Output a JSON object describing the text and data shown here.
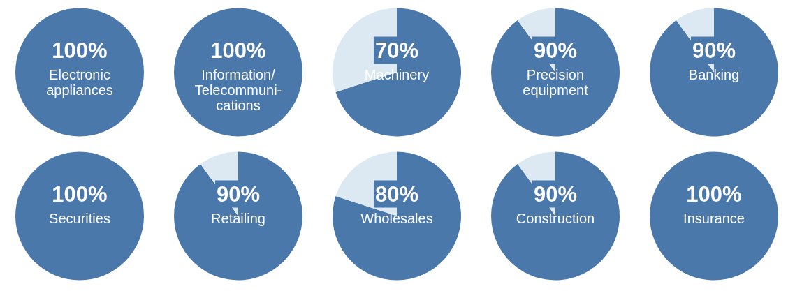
{
  "chart_data": [
    {
      "type": "pie",
      "categories": [
        "Electronic\nappliances"
      ],
      "values": [
        100
      ],
      "colors": [
        "#4a78aa"
      ],
      "value_labels": [
        "100%"
      ]
    },
    {
      "type": "pie",
      "categories": [
        "Information/\nTelecommuni-\ncations"
      ],
      "values": [
        100
      ],
      "colors": [
        "#4a78aa"
      ],
      "value_labels": [
        "100%"
      ]
    },
    {
      "type": "pie",
      "categories": [
        "Machinery",
        null
      ],
      "values": [
        70,
        30
      ],
      "colors": [
        "#4a78aa",
        "#dde9f2"
      ],
      "value_labels": [
        "70%",
        null
      ]
    },
    {
      "type": "pie",
      "categories": [
        "Precision\nequipment",
        null
      ],
      "values": [
        90,
        10
      ],
      "colors": [
        "#4a78aa",
        "#dde9f2"
      ],
      "value_labels": [
        "90%",
        null
      ]
    },
    {
      "type": "pie",
      "categories": [
        "Banking",
        null
      ],
      "values": [
        90,
        10
      ],
      "colors": [
        "#4a78aa",
        "#dde9f2"
      ],
      "value_labels": [
        "90%",
        null
      ]
    },
    {
      "type": "pie",
      "categories": [
        "Securities"
      ],
      "values": [
        100
      ],
      "colors": [
        "#4a78aa"
      ],
      "value_labels": [
        "100%"
      ]
    },
    {
      "type": "pie",
      "categories": [
        "Retailing",
        null
      ],
      "values": [
        90,
        10
      ],
      "colors": [
        "#4a78aa",
        "#dde9f2"
      ],
      "value_labels": [
        "90%",
        null
      ]
    },
    {
      "type": "pie",
      "categories": [
        "Wholesales",
        null
      ],
      "values": [
        80,
        20
      ],
      "colors": [
        "#4a78aa",
        "#dde9f2"
      ],
      "value_labels": [
        "80%",
        null
      ]
    },
    {
      "type": "pie",
      "categories": [
        "Construction",
        null
      ],
      "values": [
        90,
        10
      ],
      "colors": [
        "#4a78aa",
        "#dde9f2"
      ],
      "value_labels": [
        "90%",
        null
      ]
    },
    {
      "type": "pie",
      "categories": [
        "Insurance"
      ],
      "values": [
        100
      ],
      "colors": [
        "#4a78aa"
      ],
      "value_labels": [
        "100%"
      ]
    }
  ]
}
